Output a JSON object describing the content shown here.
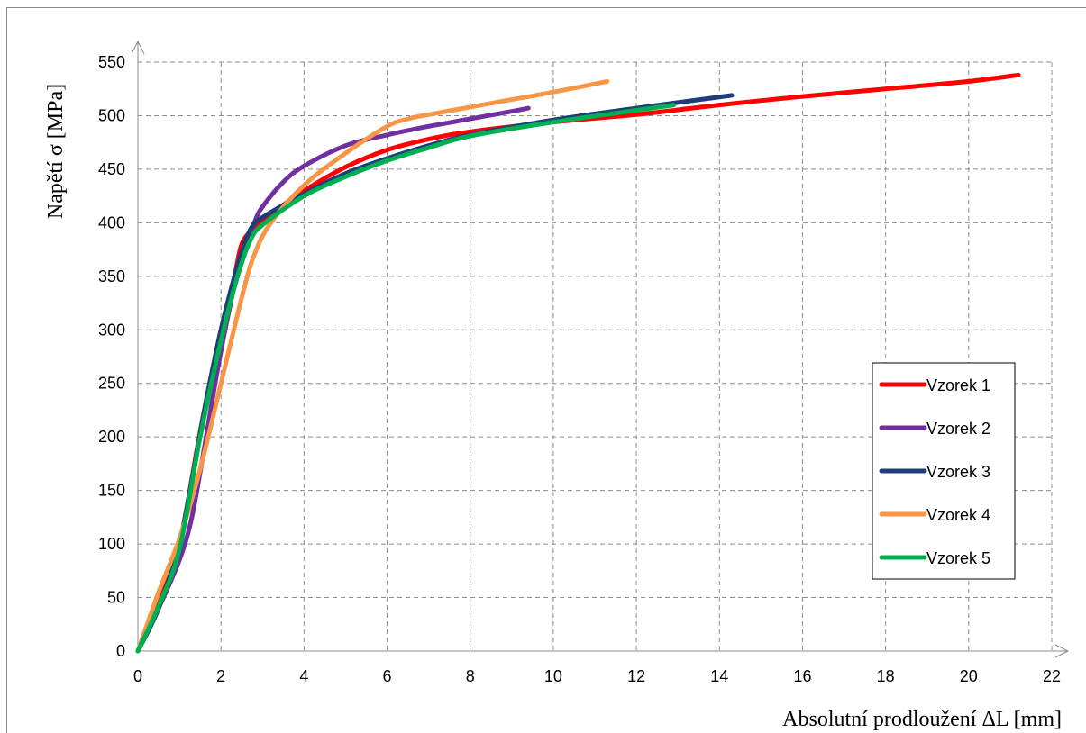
{
  "chart_data": {
    "type": "line",
    "title": "",
    "xlabel": "Absolutní prodloužení ΔL [mm]",
    "ylabel": "Napětí σ [MPa]",
    "xlim": [
      0,
      22
    ],
    "ylim": [
      0,
      550
    ],
    "xticks": [
      0,
      2,
      4,
      6,
      8,
      10,
      12,
      14,
      16,
      18,
      20,
      22
    ],
    "yticks": [
      0,
      50,
      100,
      150,
      200,
      250,
      300,
      350,
      400,
      450,
      500,
      550
    ],
    "grid": true,
    "legend_position": "right",
    "series": [
      {
        "name": "Vzorek 1",
        "color": "#ff0000",
        "x": [
          0,
          0.5,
          1.0,
          1.5,
          2.0,
          2.3,
          2.5,
          2.8,
          3.2,
          4.0,
          5.0,
          6.0,
          7.0,
          8.0,
          10.0,
          12.0,
          14.0,
          16.0,
          18.0,
          20.0,
          21.2
        ],
        "y": [
          0,
          45,
          100,
          205,
          300,
          345,
          380,
          395,
          408,
          430,
          452,
          468,
          478,
          485,
          494,
          501,
          510,
          518,
          525,
          532,
          538
        ]
      },
      {
        "name": "Vzorek 2",
        "color": "#7030a0",
        "x": [
          0,
          0.5,
          1.0,
          1.3,
          1.6,
          2.0,
          2.5,
          2.8,
          3.0,
          3.5,
          4.0,
          5.0,
          6.0,
          7.0,
          8.0,
          9.0,
          9.4
        ],
        "y": [
          0,
          40,
          85,
          125,
          190,
          280,
          370,
          400,
          415,
          438,
          453,
          472,
          482,
          490,
          497,
          504,
          507
        ]
      },
      {
        "name": "Vzorek 3",
        "color": "#1f3d7a",
        "x": [
          0,
          0.5,
          1.0,
          1.3,
          1.6,
          2.0,
          2.4,
          2.7,
          3.0,
          4.0,
          5.0,
          6.0,
          7.0,
          8.0,
          10.0,
          12.0,
          14.3
        ],
        "y": [
          0,
          40,
          100,
          160,
          225,
          300,
          360,
          393,
          405,
          427,
          446,
          460,
          472,
          482,
          496,
          507,
          519
        ]
      },
      {
        "name": "Vzorek 4",
        "color": "#f79646",
        "x": [
          0,
          0.5,
          1.0,
          1.5,
          2.0,
          2.5,
          2.8,
          3.2,
          4.0,
          5.0,
          6.0,
          6.5,
          7.0,
          8.0,
          9.0,
          10.0,
          11.3
        ],
        "y": [
          0,
          55,
          105,
          170,
          250,
          330,
          370,
          400,
          435,
          465,
          490,
          497,
          501,
          508,
          515,
          522,
          532
        ]
      },
      {
        "name": "Vzorek 5",
        "color": "#00b050",
        "x": [
          0,
          0.5,
          1.0,
          1.5,
          2.0,
          2.4,
          2.7,
          3.0,
          4.0,
          5.0,
          6.0,
          7.0,
          8.0,
          10.0,
          12.0,
          12.9
        ],
        "y": [
          0,
          42,
          95,
          200,
          290,
          350,
          383,
          398,
          425,
          443,
          458,
          470,
          481,
          494,
          505,
          510
        ]
      }
    ]
  }
}
